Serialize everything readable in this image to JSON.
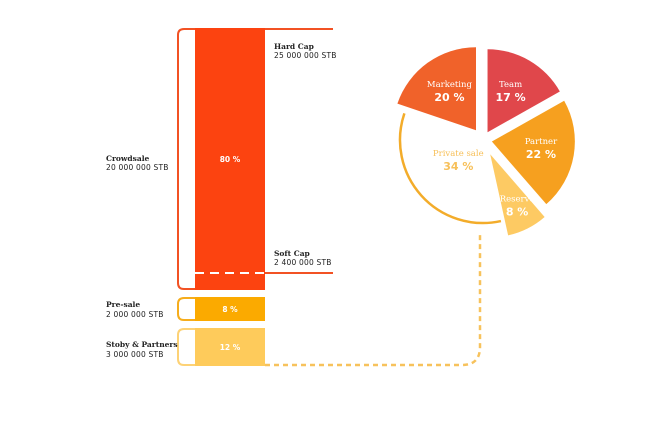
{
  "chart_data": [
    {
      "type": "bar",
      "stack": [
        {
          "name": "Crowdsale",
          "amount": "20 000 000 STB",
          "percent_label": "80 %",
          "value": 80,
          "color": "#fc4310"
        },
        {
          "name": "Pre-sale",
          "amount": "2 000 000 STB",
          "percent_label": "8 %",
          "value": 8,
          "color": "#fbaa00"
        },
        {
          "name": "Stoby & Partners",
          "amount": "3 000 000 STB",
          "percent_label": "12 %",
          "value": 12,
          "color": "#fecb5b"
        }
      ],
      "markers": [
        {
          "name": "Hard Cap",
          "amount": "25 000 000 STB"
        },
        {
          "name": "Soft Cap",
          "amount": "2 400 000 STB"
        }
      ]
    },
    {
      "type": "pie",
      "slices": [
        {
          "label": "Team",
          "percent_label": "17 %",
          "value": 17,
          "color": "#e0474b"
        },
        {
          "label": "Partner",
          "percent_label": "22 %",
          "value": 22,
          "color": "#f6a01f"
        },
        {
          "label": "Reserve",
          "percent_label": "8 %",
          "value": 8,
          "color": "#fdca63"
        },
        {
          "label": "Private sale",
          "percent_label": "34 %",
          "value": 34,
          "color": "#ffffff",
          "outline": "#f3ac2a",
          "text_color": "#f7c05a"
        },
        {
          "label": "Marketing",
          "percent_label": "20 %",
          "value": 20,
          "color": "#f0622a"
        }
      ]
    }
  ],
  "colors": {
    "bracket_crowdsale": "#f25224",
    "bracket_presale": "#f6ad1c",
    "bracket_stoby": "#fdd276",
    "connector": "#f7c25c"
  }
}
